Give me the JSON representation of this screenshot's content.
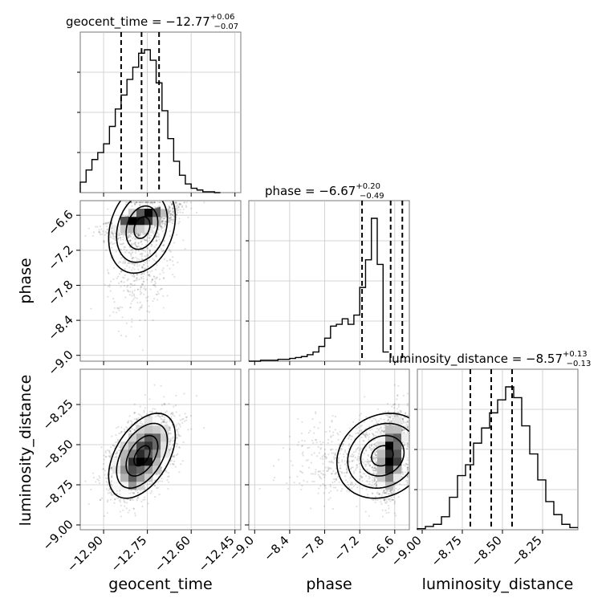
{
  "chart_data": {
    "type": "corner",
    "parameters": [
      "geocent_time",
      "phase",
      "luminosity_distance"
    ],
    "axis_labels": {
      "geocent_time": "geocent_time",
      "phase": "phase",
      "luminosity_distance": "luminosity_distance"
    },
    "titles": [
      {
        "param": "geocent_time",
        "text": "geocent_time = −12.77",
        "sup": "+0.06",
        "sub": "−0.07"
      },
      {
        "param": "phase",
        "text": "phase = −6.67",
        "sup": "+0.20",
        "sub": "−0.49"
      },
      {
        "param": "luminosity_distance",
        "text": "luminosity_distance = −8.57",
        "sup": "+0.13",
        "sub": "−0.13"
      }
    ],
    "ranges": {
      "geocent_time": [
        -12.98,
        -12.43
      ],
      "phase": [
        -9.1,
        -6.35
      ],
      "luminosity_distance": [
        -9.03,
        -8.03
      ]
    },
    "ticks": {
      "geocent_time": {
        "values": [
          -12.9,
          -12.75,
          -12.6,
          -12.45
        ],
        "labels": [
          "−12.90",
          "−12.75",
          "−12.60",
          "−12.45"
        ]
      },
      "phase": {
        "values": [
          -9.0,
          -8.4,
          -7.8,
          -7.2,
          -6.6
        ],
        "labels": [
          "−9.0",
          "−8.4",
          "−7.8",
          "−7.2",
          "−6.6"
        ]
      },
      "luminosity_distance": {
        "values": [
          -9.0,
          -8.75,
          -8.5,
          -8.25
        ],
        "labels": [
          "−9.00",
          "−8.75",
          "−8.50",
          "−8.25"
        ]
      }
    },
    "quantiles": {
      "geocent_time": [
        -12.84,
        -12.77,
        -12.71
      ],
      "phase": [
        -7.16,
        -6.67,
        -6.47
      ],
      "luminosity_distance": [
        -8.7,
        -8.57,
        -8.44
      ]
    },
    "histograms": {
      "geocent_time": {
        "edges_start": -12.98,
        "bin_width": 0.02,
        "counts": [
          0.12,
          0.26,
          0.38,
          0.46,
          0.56,
          0.76,
          0.96,
          1.12,
          1.3,
          1.44,
          1.6,
          1.64,
          1.52,
          1.26,
          0.94,
          0.62,
          0.36,
          0.2,
          0.1,
          0.05,
          0.03,
          0.01,
          0.01,
          0.0
        ]
      },
      "phase": {
        "edges_start": -9.1,
        "bin_width": 0.1,
        "counts": [
          0.0,
          0.0,
          0.01,
          0.01,
          0.01,
          0.02,
          0.02,
          0.03,
          0.04,
          0.05,
          0.07,
          0.1,
          0.16,
          0.25,
          0.38,
          0.4,
          0.46,
          0.4,
          0.5,
          0.8,
          1.1,
          1.55,
          1.05,
          0.1
        ]
      },
      "luminosity_distance": {
        "edges_start": -9.03,
        "bin_width": 0.05,
        "counts": [
          0.01,
          0.03,
          0.05,
          0.12,
          0.3,
          0.5,
          0.6,
          0.8,
          0.94,
          1.08,
          1.2,
          1.32,
          1.22,
          0.96,
          0.7,
          0.46,
          0.26,
          0.14,
          0.05,
          0.02
        ]
      }
    },
    "grid": true
  }
}
